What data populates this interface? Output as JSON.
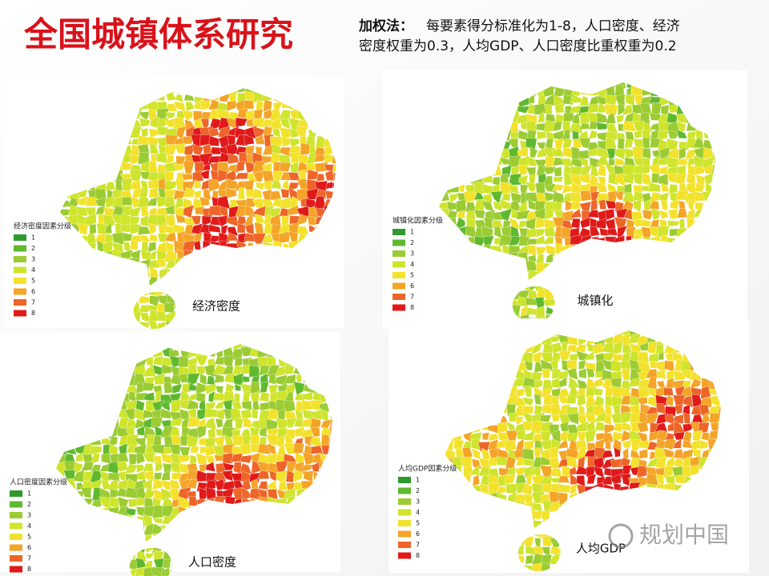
{
  "title": "全国城镇体系研究",
  "weighting": {
    "label": "加权法：",
    "lines": [
      "每要素得分标准化为1-8，人口密度、经济",
      "密度权重为0.3，人均GDP、人口密度比重权重为0.2"
    ]
  },
  "legend": {
    "levels": [
      "1",
      "2",
      "3",
      "4",
      "5",
      "6",
      "7",
      "8"
    ],
    "colors": [
      "#2e9a2e",
      "#5fb92f",
      "#9bcc33",
      "#cfe42c",
      "#f3e22c",
      "#f4a428",
      "#ee6529",
      "#e01a1a"
    ]
  },
  "maps": [
    {
      "legend_title": "经济密度因素分级",
      "caption": "经济密度"
    },
    {
      "legend_title": "城镇化因素分级",
      "caption": "城镇化"
    },
    {
      "legend_title": "人口密度因素分级",
      "caption": "人口密度"
    },
    {
      "legend_title": "人均GDP因素分级",
      "caption": "人均GDP"
    }
  ],
  "watermark": "规划中国"
}
